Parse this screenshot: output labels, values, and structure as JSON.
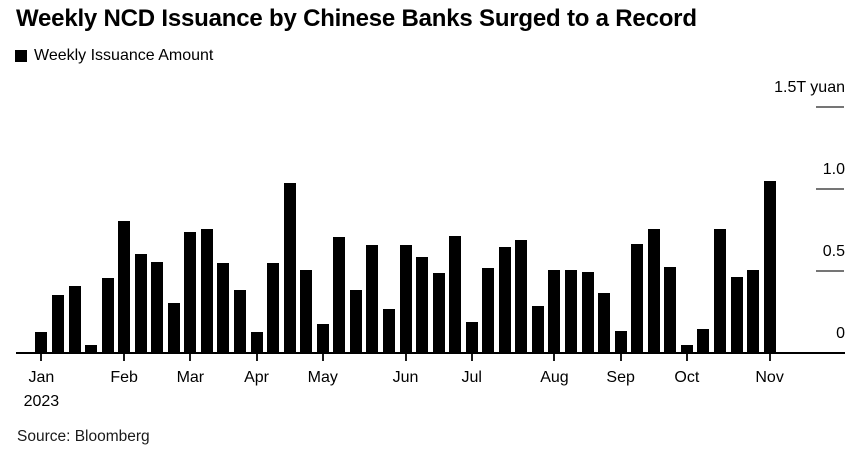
{
  "header": {
    "title": "Weekly NCD Issuance by Chinese Banks Surged to a Record",
    "legend_label": "Weekly Issuance Amount"
  },
  "source": "Source: Bloomberg",
  "chart_data": {
    "type": "bar",
    "title": "Weekly NCD Issuance by Chinese Banks Surged to a Record",
    "series_name": "Weekly Issuance Amount",
    "unit": "T yuan",
    "ylim": [
      0,
      1.5
    ],
    "yticks": [
      {
        "value": 0,
        "label": "0"
      },
      {
        "value": 0.5,
        "label": "0.5"
      },
      {
        "value": 1.0,
        "label": "1.0"
      },
      {
        "value": 1.5,
        "label": "1.5T yuan"
      }
    ],
    "grid": false,
    "legend_position": "top-left",
    "bar_color": "#000000",
    "tick_color": "#757575",
    "year_label": "2023",
    "months": [
      {
        "label": "Jan",
        "weekly_values": [
          0.12,
          0.35,
          0.4,
          0.04,
          0.45
        ]
      },
      {
        "label": "Feb",
        "weekly_values": [
          0.8,
          0.6,
          0.55,
          0.3
        ]
      },
      {
        "label": "Mar",
        "weekly_values": [
          0.73,
          0.75,
          0.54,
          0.38
        ]
      },
      {
        "label": "Apr",
        "weekly_values": [
          0.12,
          0.54,
          1.03,
          0.5
        ]
      },
      {
        "label": "May",
        "weekly_values": [
          0.17,
          0.7,
          0.38,
          0.65,
          0.26
        ]
      },
      {
        "label": "Jun",
        "weekly_values": [
          0.65,
          0.58,
          0.48,
          0.71
        ]
      },
      {
        "label": "Jul",
        "weekly_values": [
          0.18,
          0.51,
          0.64,
          0.68,
          0.28
        ]
      },
      {
        "label": "Aug",
        "weekly_values": [
          0.5,
          0.5,
          0.49,
          0.36
        ]
      },
      {
        "label": "Sep",
        "weekly_values": [
          0.13,
          0.66,
          0.75,
          0.52
        ]
      },
      {
        "label": "Oct",
        "weekly_values": [
          0.04,
          0.14,
          0.75,
          0.46,
          0.5
        ]
      },
      {
        "label": "Nov",
        "weekly_values": [
          1.04
        ]
      }
    ]
  }
}
